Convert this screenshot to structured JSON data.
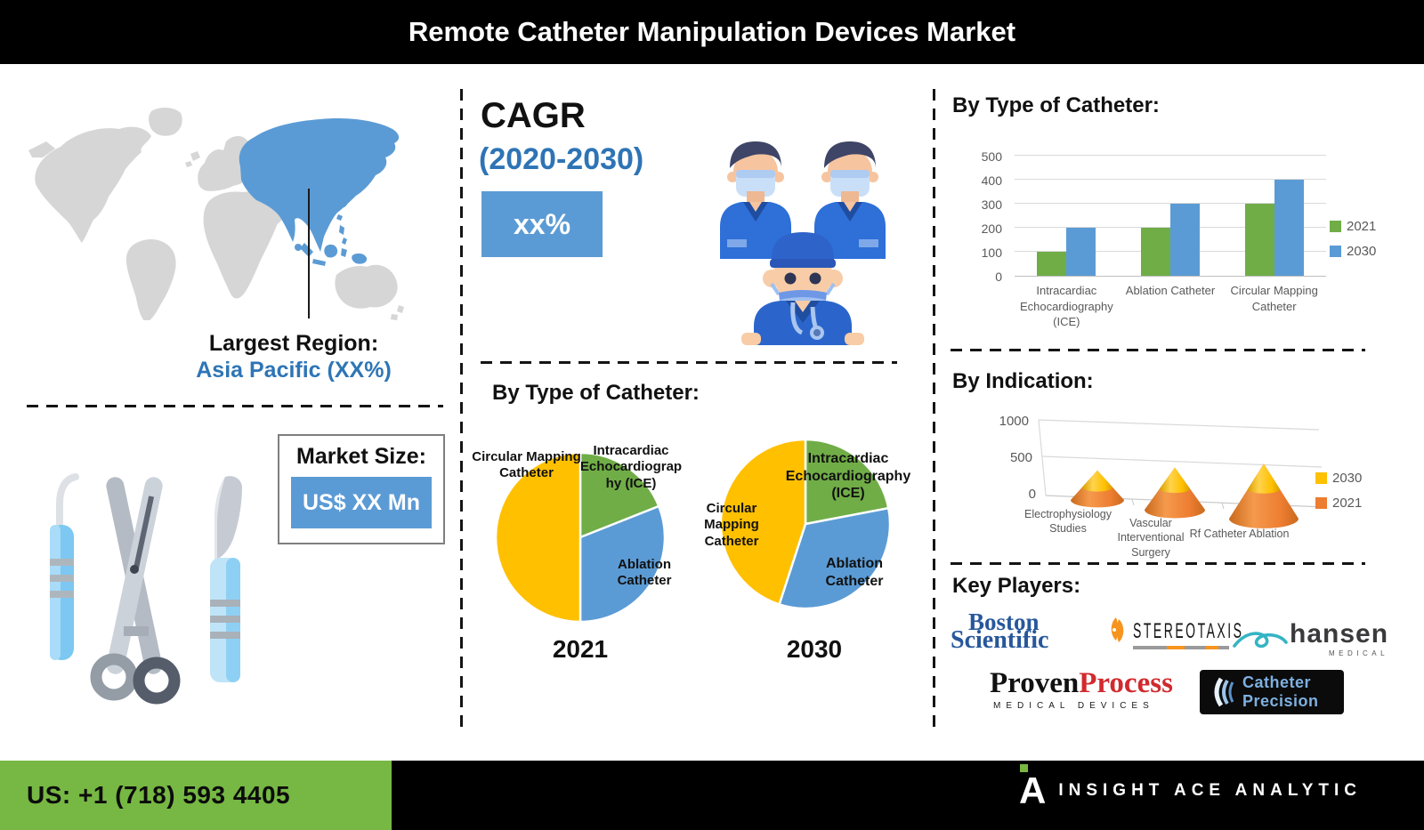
{
  "header": {
    "title": "Remote Catheter Manipulation Devices Market"
  },
  "map": {
    "largest_region_label": "Largest Region:",
    "largest_region_value": "Asia Pacific (XX%)",
    "highlight_color": "#5B9BD5",
    "land_color": "#D6D6D6"
  },
  "market_size": {
    "label": "Market Size:",
    "value": "US$ XX Mn",
    "value_bg": "#5B9BD5"
  },
  "cagr": {
    "label": "CAGR",
    "period": "(2020-2030)",
    "value": "xx%",
    "period_color": "#2E74B5",
    "value_bg": "#5B9BD5"
  },
  "pie_section": {
    "title": "By Type of Catheter:"
  },
  "key_players": {
    "title": "Key Players:",
    "players": [
      "Boston Scientific",
      "Stereotaxis",
      "Hansen Medical",
      "Proven Process Medical Devices",
      "Catheter Precision"
    ]
  },
  "logos": {
    "boston": {
      "line1": "Boston",
      "line2": "Scientific",
      "color": "#27579B"
    },
    "stereotaxis": {
      "text": "STEREOTAXIS",
      "icon_color": "#F7941D"
    },
    "hansen": {
      "text": "hansen",
      "sub": "MEDICAL",
      "swirl_color": "#35B4C4"
    },
    "proven": {
      "word1": "Proven",
      "word2": "Process",
      "sub": "MEDICAL DEVICES",
      "word2_color": "#D12A2E"
    },
    "catheter_precision": {
      "line1": "Catheter",
      "line2": "Precision",
      "text_color": "#7EB0E0"
    }
  },
  "footer": {
    "phone": "US: +1 (718) 593 4405",
    "brand": "INSIGHT ACE ANALYTIC",
    "accent": "#76B843"
  },
  "chart_data": [
    {
      "id": "by-type-bar",
      "type": "bar",
      "title": "By Type of Catheter:",
      "categories": [
        "Intracardiac Echocardiography (ICE)",
        "Ablation Catheter",
        "Circular Mapping Catheter"
      ],
      "series": [
        {
          "name": "2021",
          "color": "#70AD47",
          "values": [
            100,
            200,
            300
          ]
        },
        {
          "name": "2030",
          "color": "#5B9BD5",
          "values": [
            200,
            300,
            400
          ]
        }
      ],
      "ylim": [
        0,
        500
      ],
      "yticks": [
        0,
        100,
        200,
        300,
        400,
        500
      ],
      "grid": true,
      "legend_position": "right"
    },
    {
      "id": "pie-2021",
      "type": "pie",
      "title": "2021",
      "units": "percent, estimated from slice angles",
      "slices": [
        {
          "label": "Intracardiac Echocardiography (ICE)",
          "value": 19,
          "color": "#70AD47"
        },
        {
          "label": "Ablation Catheter",
          "value": 31,
          "color": "#5B9BD5"
        },
        {
          "label": "Circular Mapping Catheter",
          "value": 50,
          "color": "#FFC000"
        }
      ]
    },
    {
      "id": "pie-2030",
      "type": "pie",
      "title": "2030",
      "units": "percent, estimated from slice angles",
      "slices": [
        {
          "label": "Intracardiac Echocardiography (ICE)",
          "value": 22,
          "color": "#70AD47"
        },
        {
          "label": "Ablation Catheter",
          "value": 33,
          "color": "#5B9BD5"
        },
        {
          "label": "Circular Mapping Catheter",
          "value": 45,
          "color": "#FFC000"
        }
      ]
    },
    {
      "id": "by-indication-cone",
      "type": "cone",
      "title": "By Indication:",
      "categories": [
        "Electrophysiology Studies",
        "Vascular Interventional Surgery",
        "Rf Catheter Ablation"
      ],
      "series": [
        {
          "name": "2030",
          "color": "#FFC000",
          "values": [
            200,
            250,
            300
          ]
        },
        {
          "name": "2021",
          "color": "#ED7D31",
          "values": [
            150,
            250,
            350
          ]
        }
      ],
      "stacked": true,
      "ylim": [
        0,
        1000
      ],
      "yticks": [
        0,
        500,
        1000
      ],
      "legend_position": "right",
      "units": "estimated from cone heights"
    }
  ]
}
